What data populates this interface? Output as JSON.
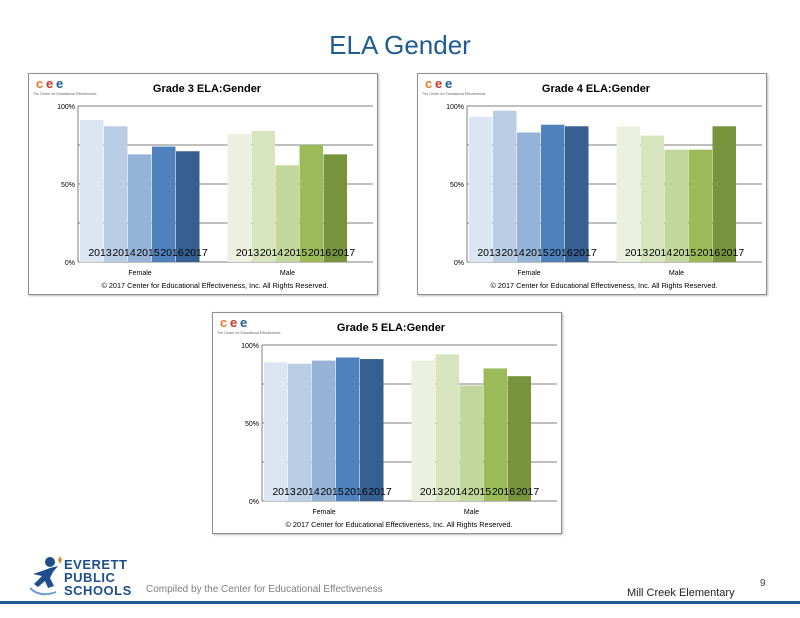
{
  "slide_title": "ELA Gender",
  "footer": {
    "compiled_by": "Compiled by the Center for Educational Effectiveness",
    "school": "Mill Creek Elementary",
    "page_number": "9"
  },
  "district_logo": {
    "line1": "EVERETT",
    "line2": "PUBLIC",
    "line3": "SCHOOLS"
  },
  "cee_logo": {
    "letters": [
      "c",
      "e",
      "e"
    ],
    "tagline": "The Center for Educational Effectiveness"
  },
  "colors": {
    "female": [
      "#dce6f2",
      "#b9cde5",
      "#95b3d7",
      "#4f81bd",
      "#376092"
    ],
    "male": [
      "#ebf1de",
      "#d7e4bd",
      "#c3d69b",
      "#9bbb59",
      "#77933c"
    ],
    "title_blue": "#1f5b95"
  },
  "chart_data": [
    {
      "type": "bar",
      "title": "Grade 3 ELA:Gender",
      "categories": [
        "Female",
        "Male"
      ],
      "series_labels": [
        "2013",
        "2014",
        "2015",
        "2016",
        "2017"
      ],
      "values": {
        "Female": [
          91,
          87,
          69,
          74,
          71
        ],
        "Male": [
          82,
          84,
          62,
          75,
          69
        ]
      },
      "yticks": [
        "0%",
        "50%",
        "100%"
      ],
      "ylim": [
        0,
        100
      ],
      "copyright": "© 2017 Center for Educational Effectiveness, Inc. All Rights Reserved."
    },
    {
      "type": "bar",
      "title": "Grade 4 ELA:Gender",
      "categories": [
        "Female",
        "Male"
      ],
      "series_labels": [
        "2013",
        "2014",
        "2015",
        "2016",
        "2017"
      ],
      "values": {
        "Female": [
          93,
          97,
          83,
          88,
          87
        ],
        "Male": [
          87,
          81,
          72,
          72,
          87
        ]
      },
      "yticks": [
        "0%",
        "50%",
        "100%"
      ],
      "ylim": [
        0,
        100
      ],
      "copyright": "© 2017 Center for Educational Effectiveness, Inc. All Rights Reserved."
    },
    {
      "type": "bar",
      "title": "Grade 5 ELA:Gender",
      "categories": [
        "Female",
        "Male"
      ],
      "series_labels": [
        "2013",
        "2014",
        "2015",
        "2016",
        "2017"
      ],
      "values": {
        "Female": [
          89,
          88,
          90,
          92,
          91
        ],
        "Male": [
          90,
          94,
          74,
          85,
          80
        ]
      },
      "yticks": [
        "0%",
        "50%",
        "100%"
      ],
      "ylim": [
        0,
        100
      ],
      "copyright": "© 2017 Center for Educational Effectiveness, Inc. All Rights Reserved."
    }
  ]
}
